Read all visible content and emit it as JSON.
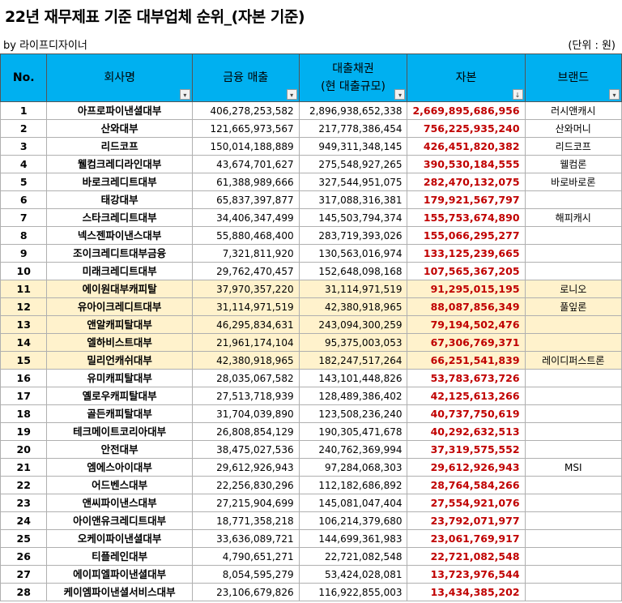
{
  "title": "22년 재무제표 기준 대부업체 순위_(자본 기준)",
  "byline": "by 라이프디자이너",
  "unit": "(단위 : 원)",
  "headers": {
    "no": "No.",
    "company": "회사명",
    "sales": "금융 매출",
    "loans_line1": "대출채권",
    "loans_line2": "(현 대출규모)",
    "capital": "자본",
    "brand": "브랜드",
    "filter_icon": "▾",
    "sort_icon": "↓"
  },
  "rows": [
    {
      "no": "1",
      "company": "아프로파이낸셜대부",
      "sales": "406,278,253,582",
      "loans": "2,896,938,652,338",
      "capital": "2,669,895,686,956",
      "brand": "러시앤캐시",
      "highlight": false
    },
    {
      "no": "2",
      "company": "산와대부",
      "sales": "121,665,973,567",
      "loans": "217,778,386,454",
      "capital": "756,225,935,240",
      "brand": "산와머니",
      "highlight": false
    },
    {
      "no": "3",
      "company": "리드코프",
      "sales": "150,014,188,889",
      "loans": "949,311,348,145",
      "capital": "426,451,820,382",
      "brand": "리드코프",
      "highlight": false
    },
    {
      "no": "4",
      "company": "웰컴크레디라인대부",
      "sales": "43,674,701,627",
      "loans": "275,548,927,265",
      "capital": "390,530,184,555",
      "brand": "웰컴론",
      "highlight": false
    },
    {
      "no": "5",
      "company": "바로크레디트대부",
      "sales": "61,388,989,666",
      "loans": "327,544,951,075",
      "capital": "282,470,132,075",
      "brand": "바로바로론",
      "highlight": false
    },
    {
      "no": "6",
      "company": "태강대부",
      "sales": "65,837,397,877",
      "loans": "317,088,316,381",
      "capital": "179,921,567,797",
      "brand": "",
      "highlight": false
    },
    {
      "no": "7",
      "company": "스타크레디트대부",
      "sales": "34,406,347,499",
      "loans": "145,503,794,374",
      "capital": "155,753,674,890",
      "brand": "해피캐시",
      "highlight": false
    },
    {
      "no": "8",
      "company": "넥스젠파이낸스대부",
      "sales": "55,880,468,400",
      "loans": "283,719,393,026",
      "capital": "155,066,295,277",
      "brand": "",
      "highlight": false
    },
    {
      "no": "9",
      "company": "조이크레디트대부금융",
      "sales": "7,321,811,920",
      "loans": "130,563,016,974",
      "capital": "133,125,239,665",
      "brand": "",
      "highlight": false
    },
    {
      "no": "10",
      "company": "미래크레디트대부",
      "sales": "29,762,470,457",
      "loans": "152,648,098,168",
      "capital": "107,565,367,205",
      "brand": "",
      "highlight": false
    },
    {
      "no": "11",
      "company": "에이원대부캐피탈",
      "sales": "37,970,357,220",
      "loans": "31,114,971,519",
      "capital": "91,295,015,195",
      "brand": "로니오",
      "highlight": true
    },
    {
      "no": "12",
      "company": "유아이크레디트대부",
      "sales": "31,114,971,519",
      "loans": "42,380,918,965",
      "capital": "88,087,856,349",
      "brand": "풀잎론",
      "highlight": true
    },
    {
      "no": "13",
      "company": "앤알캐피탈대부",
      "sales": "46,295,834,631",
      "loans": "243,094,300,259",
      "capital": "79,194,502,476",
      "brand": "",
      "highlight": true
    },
    {
      "no": "14",
      "company": "엘하비스트대부",
      "sales": "21,961,174,104",
      "loans": "95,375,003,053",
      "capital": "67,306,769,371",
      "brand": "",
      "highlight": true
    },
    {
      "no": "15",
      "company": "밀리언캐쉬대부",
      "sales": "42,380,918,965",
      "loans": "182,247,517,264",
      "capital": "66,251,541,839",
      "brand": "레이디퍼스트론",
      "highlight": true
    },
    {
      "no": "16",
      "company": "유미캐피탈대부",
      "sales": "28,035,067,582",
      "loans": "143,101,448,826",
      "capital": "53,783,673,726",
      "brand": "",
      "highlight": false
    },
    {
      "no": "17",
      "company": "옐로우캐피탈대부",
      "sales": "27,513,718,939",
      "loans": "128,489,386,402",
      "capital": "42,125,613,266",
      "brand": "",
      "highlight": false
    },
    {
      "no": "18",
      "company": "골든캐피탈대부",
      "sales": "31,704,039,890",
      "loans": "123,508,236,240",
      "capital": "40,737,750,619",
      "brand": "",
      "highlight": false
    },
    {
      "no": "19",
      "company": "테크메이트코리아대부",
      "sales": "26,808,854,129",
      "loans": "190,305,471,678",
      "capital": "40,292,632,513",
      "brand": "",
      "highlight": false
    },
    {
      "no": "20",
      "company": "안전대부",
      "sales": "38,475,027,536",
      "loans": "240,762,369,994",
      "capital": "37,319,575,552",
      "brand": "",
      "highlight": false
    },
    {
      "no": "21",
      "company": "엠에스아이대부",
      "sales": "29,612,926,943",
      "loans": "97,284,068,303",
      "capital": "29,612,926,943",
      "brand": "MSI",
      "highlight": false
    },
    {
      "no": "22",
      "company": "어드벤스대부",
      "sales": "22,256,830,296",
      "loans": "112,182,686,892",
      "capital": "28,764,584,266",
      "brand": "",
      "highlight": false
    },
    {
      "no": "23",
      "company": "앤씨파이낸스대부",
      "sales": "27,215,904,699",
      "loans": "145,081,047,404",
      "capital": "27,554,921,076",
      "brand": "",
      "highlight": false
    },
    {
      "no": "24",
      "company": "아이앤유크레디트대부",
      "sales": "18,771,358,218",
      "loans": "106,214,379,680",
      "capital": "23,792,071,977",
      "brand": "",
      "highlight": false
    },
    {
      "no": "25",
      "company": "오케이파이낸셜대부",
      "sales": "33,636,089,721",
      "loans": "144,699,361,983",
      "capital": "23,061,769,917",
      "brand": "",
      "highlight": false
    },
    {
      "no": "26",
      "company": "티플레인대부",
      "sales": "4,790,651,271",
      "loans": "22,721,082,548",
      "capital": "22,721,082,548",
      "brand": "",
      "highlight": false
    },
    {
      "no": "27",
      "company": "에이피엘파이낸셜대부",
      "sales": "8,054,595,279",
      "loans": "53,424,028,081",
      "capital": "13,723,976,544",
      "brand": "",
      "highlight": false
    },
    {
      "no": "28",
      "company": "케이엠파이낸셜서비스대부",
      "sales": "23,106,679,826",
      "loans": "116,922,855,003",
      "capital": "13,434,385,202",
      "brand": "",
      "highlight": false
    }
  ]
}
